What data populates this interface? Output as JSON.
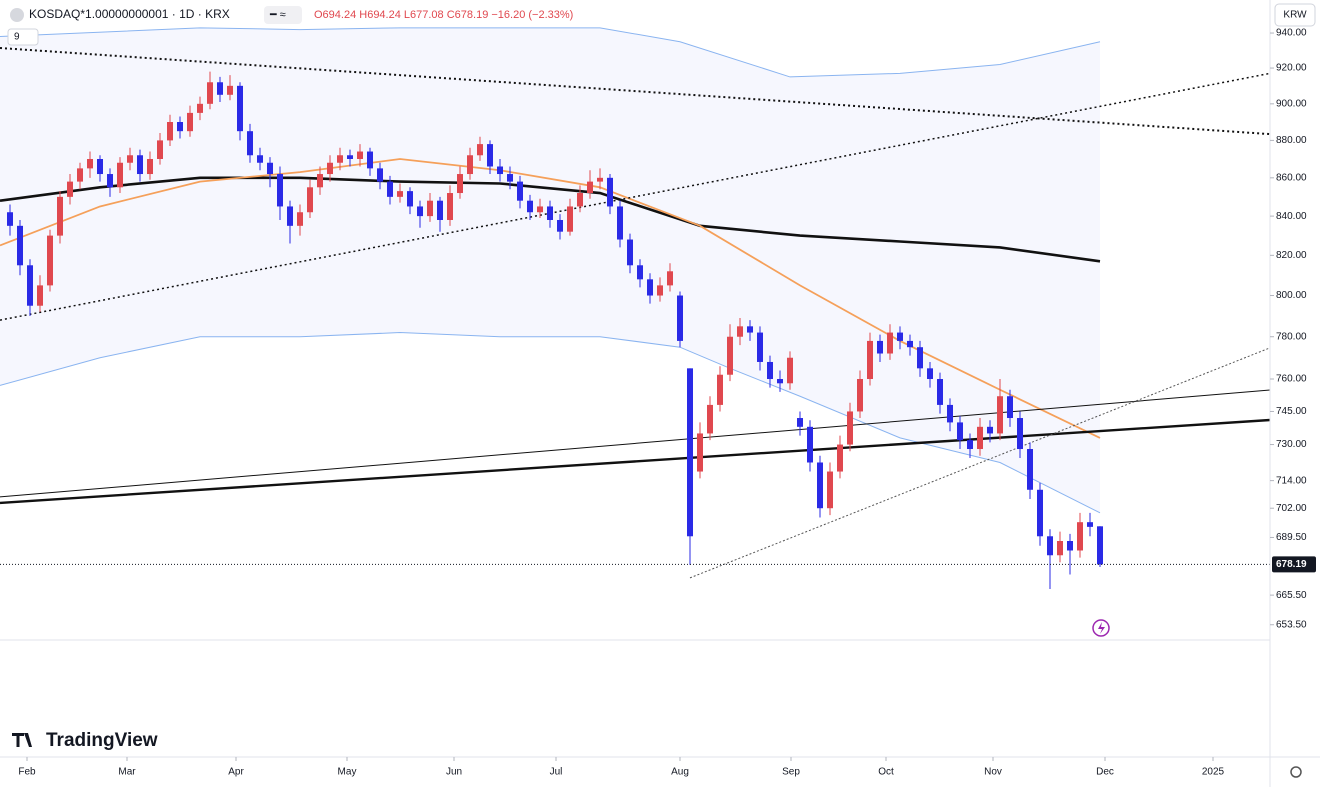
{
  "header": {
    "symbol": "KOSDAQ*1.00000000001 · 1D · KRX",
    "ohlc": "O694.24 H694.24 L677.08 C678.19 −16.20 (−2.33%)",
    "indicator_count": "9",
    "currency": "KRW",
    "logo": "TradingView"
  },
  "chart_data": {
    "type": "candlestick",
    "log_scale": true,
    "up_color": "#e0484f",
    "down_color": "#2a2ae6",
    "xlim": [
      0,
      127
    ],
    "ylim": [
      647.4,
      946.4
    ],
    "xticks": [
      {
        "value": 2.7,
        "label": "Feb"
      },
      {
        "value": 12.7,
        "label": "Mar"
      },
      {
        "value": 23.6,
        "label": "Apr"
      },
      {
        "value": 34.7,
        "label": "May"
      },
      {
        "value": 45.4,
        "label": "Jun"
      },
      {
        "value": 55.6,
        "label": "Jul"
      },
      {
        "value": 68,
        "label": "Aug"
      },
      {
        "value": 79.1,
        "label": "Sep"
      },
      {
        "value": 88.6,
        "label": "Oct"
      },
      {
        "value": 99.3,
        "label": "Nov"
      },
      {
        "value": 110.5,
        "label": "Dec"
      },
      {
        "value": 121.3,
        "label": "2025"
      }
    ],
    "yticks": [
      {
        "value": 940,
        "label": "940.00"
      },
      {
        "value": 920,
        "label": "920.00"
      },
      {
        "value": 900,
        "label": "900.00"
      },
      {
        "value": 880,
        "label": "880.00"
      },
      {
        "value": 860,
        "label": "860.00"
      },
      {
        "value": 840,
        "label": "840.00"
      },
      {
        "value": 820,
        "label": "820.00"
      },
      {
        "value": 800,
        "label": "800.00"
      },
      {
        "value": 780,
        "label": "780.00"
      },
      {
        "value": 760,
        "label": "760.00"
      },
      {
        "value": 745,
        "label": "745.00"
      },
      {
        "value": 730,
        "label": "730.00"
      },
      {
        "value": 714,
        "label": "714.00"
      },
      {
        "value": 702,
        "label": "702.00"
      },
      {
        "value": 689.5,
        "label": "689.50"
      },
      {
        "value": 665.5,
        "label": "665.50"
      },
      {
        "value": 653.5,
        "label": "653.50"
      }
    ],
    "last_price": 678.19,
    "candles": [
      [
        1,
        842,
        846,
        830,
        835
      ],
      [
        2,
        835,
        838,
        810,
        815
      ],
      [
        3,
        815,
        818,
        790,
        795
      ],
      [
        4,
        795,
        810,
        792,
        805
      ],
      [
        5,
        805,
        833,
        802,
        830
      ],
      [
        6,
        830,
        853,
        826,
        850
      ],
      [
        7,
        850,
        862,
        846,
        858
      ],
      [
        8,
        858,
        868,
        854,
        865
      ],
      [
        9,
        865,
        874,
        860,
        870
      ],
      [
        10,
        870,
        872,
        858,
        862
      ],
      [
        11,
        862,
        865,
        850,
        855
      ],
      [
        12,
        855,
        871,
        852,
        868
      ],
      [
        13,
        868,
        876,
        864,
        872
      ],
      [
        14,
        872,
        875,
        858,
        862
      ],
      [
        15,
        862,
        874,
        859,
        870
      ],
      [
        16,
        870,
        884,
        867,
        880
      ],
      [
        17,
        880,
        894,
        877,
        890
      ],
      [
        18,
        890,
        893,
        881,
        885
      ],
      [
        19,
        885,
        899,
        882,
        895
      ],
      [
        20,
        895,
        904,
        891,
        900
      ],
      [
        21,
        900,
        918,
        897,
        912
      ],
      [
        22,
        912,
        915,
        901,
        905
      ],
      [
        23,
        905,
        916,
        902,
        910
      ],
      [
        24,
        910,
        912,
        880,
        885
      ],
      [
        25,
        885,
        889,
        868,
        872
      ],
      [
        26,
        872,
        876,
        864,
        868
      ],
      [
        27,
        868,
        871,
        855,
        862
      ],
      [
        28,
        862,
        866,
        838,
        845
      ],
      [
        29,
        845,
        848,
        826,
        835
      ],
      [
        30,
        835,
        846,
        830,
        842
      ],
      [
        31,
        842,
        859,
        839,
        855
      ],
      [
        32,
        855,
        866,
        851,
        862
      ],
      [
        33,
        862,
        872,
        858,
        868
      ],
      [
        34,
        868,
        876,
        864,
        872
      ],
      [
        35,
        872,
        875,
        866,
        870
      ],
      [
        36,
        870,
        878,
        866,
        874
      ],
      [
        37,
        874,
        876,
        861,
        865
      ],
      [
        38,
        865,
        868,
        854,
        858
      ],
      [
        39,
        858,
        861,
        846,
        850
      ],
      [
        40,
        850,
        857,
        847,
        853
      ],
      [
        41,
        853,
        855,
        841,
        845
      ],
      [
        42,
        845,
        848,
        834,
        840
      ],
      [
        43,
        840,
        852,
        837,
        848
      ],
      [
        44,
        848,
        850,
        832,
        838
      ],
      [
        45,
        838,
        856,
        835,
        852
      ],
      [
        46,
        852,
        866,
        849,
        862
      ],
      [
        47,
        862,
        876,
        859,
        872
      ],
      [
        48,
        872,
        882,
        869,
        878
      ],
      [
        49,
        878,
        880,
        862,
        866
      ],
      [
        50,
        866,
        870,
        858,
        862
      ],
      [
        51,
        862,
        866,
        854,
        858
      ],
      [
        52,
        858,
        861,
        844,
        848
      ],
      [
        53,
        848,
        851,
        838,
        842
      ],
      [
        54,
        842,
        849,
        839,
        845
      ],
      [
        55,
        845,
        848,
        834,
        838
      ],
      [
        56,
        838,
        841,
        828,
        832
      ],
      [
        57,
        832,
        849,
        830,
        845
      ],
      [
        58,
        845,
        856,
        842,
        852
      ],
      [
        59,
        852,
        864,
        849,
        858
      ],
      [
        60,
        858,
        865,
        854,
        860
      ],
      [
        61,
        860,
        862,
        841,
        845
      ],
      [
        62,
        845,
        848,
        824,
        828
      ],
      [
        63,
        828,
        831,
        811,
        815
      ],
      [
        64,
        815,
        818,
        804,
        808
      ],
      [
        65,
        808,
        811,
        796,
        800
      ],
      [
        66,
        800,
        809,
        797,
        805
      ],
      [
        67,
        805,
        816,
        802,
        812
      ],
      [
        68,
        800,
        802,
        775,
        778
      ],
      [
        69,
        765,
        765,
        678,
        690
      ],
      [
        70,
        718,
        740,
        715,
        735
      ],
      [
        71,
        735,
        752,
        732,
        748
      ],
      [
        72,
        748,
        766,
        745,
        762
      ],
      [
        73,
        762,
        786,
        759,
        780
      ],
      [
        74,
        780,
        789,
        776,
        785
      ],
      [
        75,
        785,
        788,
        778,
        782
      ],
      [
        76,
        782,
        785,
        764,
        768
      ],
      [
        77,
        768,
        771,
        756,
        760
      ],
      [
        78,
        760,
        764,
        754,
        758
      ],
      [
        79,
        758,
        773,
        755,
        770
      ],
      [
        80,
        742,
        745,
        734,
        738
      ],
      [
        81,
        738,
        741,
        718,
        722
      ],
      [
        82,
        722,
        725,
        698,
        702
      ],
      [
        83,
        702,
        722,
        699,
        718
      ],
      [
        84,
        718,
        734,
        715,
        730
      ],
      [
        85,
        730,
        749,
        727,
        745
      ],
      [
        86,
        745,
        764,
        742,
        760
      ],
      [
        87,
        760,
        782,
        757,
        778
      ],
      [
        88,
        778,
        781,
        768,
        772
      ],
      [
        89,
        772,
        786,
        769,
        782
      ],
      [
        90,
        782,
        785,
        774,
        778
      ],
      [
        91,
        778,
        781,
        771,
        775
      ],
      [
        92,
        775,
        778,
        761,
        765
      ],
      [
        93,
        765,
        768,
        756,
        760
      ],
      [
        94,
        760,
        763,
        744,
        748
      ],
      [
        95,
        748,
        751,
        736,
        740
      ],
      [
        96,
        740,
        743,
        728,
        732
      ],
      [
        97,
        732,
        735,
        724,
        728
      ],
      [
        98,
        728,
        742,
        725,
        738
      ],
      [
        99,
        738,
        741,
        731,
        735
      ],
      [
        100,
        735,
        760,
        732,
        752
      ],
      [
        101,
        752,
        755,
        738,
        742
      ],
      [
        102,
        742,
        745,
        724,
        728
      ],
      [
        103,
        728,
        731,
        706,
        710
      ],
      [
        104,
        710,
        713,
        686,
        690
      ],
      [
        105,
        690,
        693,
        668,
        682
      ],
      [
        106,
        682,
        692,
        679,
        688
      ],
      [
        107,
        688,
        691,
        674,
        684
      ],
      [
        108,
        684,
        700,
        681,
        696
      ],
      [
        109,
        696,
        700,
        690,
        694
      ],
      [
        110,
        694.24,
        694.24,
        677.08,
        678.19
      ]
    ],
    "overlays": [
      {
        "color": "#111111",
        "width": 2.6,
        "x": [
          0,
          10,
          20,
          30,
          40,
          50,
          60,
          70,
          80,
          90,
          100,
          110
        ],
        "values": [
          848,
          855,
          860,
          860,
          858,
          857,
          852,
          835,
          830,
          827,
          824,
          817
        ]
      },
      {
        "color": "#f5a05a",
        "width": 1.8,
        "x": [
          0,
          10,
          20,
          30,
          40,
          50,
          60,
          70,
          80,
          90,
          100,
          110
        ],
        "values": [
          825,
          845,
          858,
          863,
          870,
          864,
          855,
          835,
          805,
          778,
          755,
          733
        ]
      },
      {
        "color": "#8ab4f0",
        "width": 1,
        "x": [
          0,
          20,
          30,
          40,
          50,
          60,
          68,
          79,
          90,
          100,
          110
        ],
        "values": [
          938,
          943,
          942,
          943,
          943,
          943,
          935,
          915,
          917,
          922,
          935
        ]
      },
      {
        "color": "#8ab4f0",
        "width": 1,
        "x": [
          0,
          10,
          20,
          30,
          40,
          50,
          60,
          68,
          73,
          80,
          90,
          100,
          110
        ],
        "values": [
          757,
          770,
          780,
          780,
          782,
          780,
          780,
          775,
          765,
          752,
          733,
          722,
          700
        ]
      }
    ],
    "drawings": [
      {
        "color": "#111111",
        "width": 2,
        "dash": "2,3",
        "x": [
          0,
          127
        ],
        "values": [
          931.4,
          883.4
        ]
      },
      {
        "color": "#111111",
        "width": 1.5,
        "dash": "2,3",
        "x": [
          0,
          127
        ],
        "values": [
          788,
          917
        ]
      },
      {
        "color": "#111111",
        "width": 2.4,
        "dash": "",
        "x": [
          0,
          127
        ],
        "values": [
          704.3,
          741.1
        ]
      },
      {
        "color": "#111111",
        "width": 1,
        "dash": "",
        "x": [
          0,
          127
        ],
        "values": [
          706.9,
          754.9
        ]
      },
      {
        "color": "#555555",
        "width": 1,
        "dash": "2,2",
        "x": [
          69,
          127
        ],
        "values": [
          672.6,
          774.7
        ]
      }
    ]
  }
}
